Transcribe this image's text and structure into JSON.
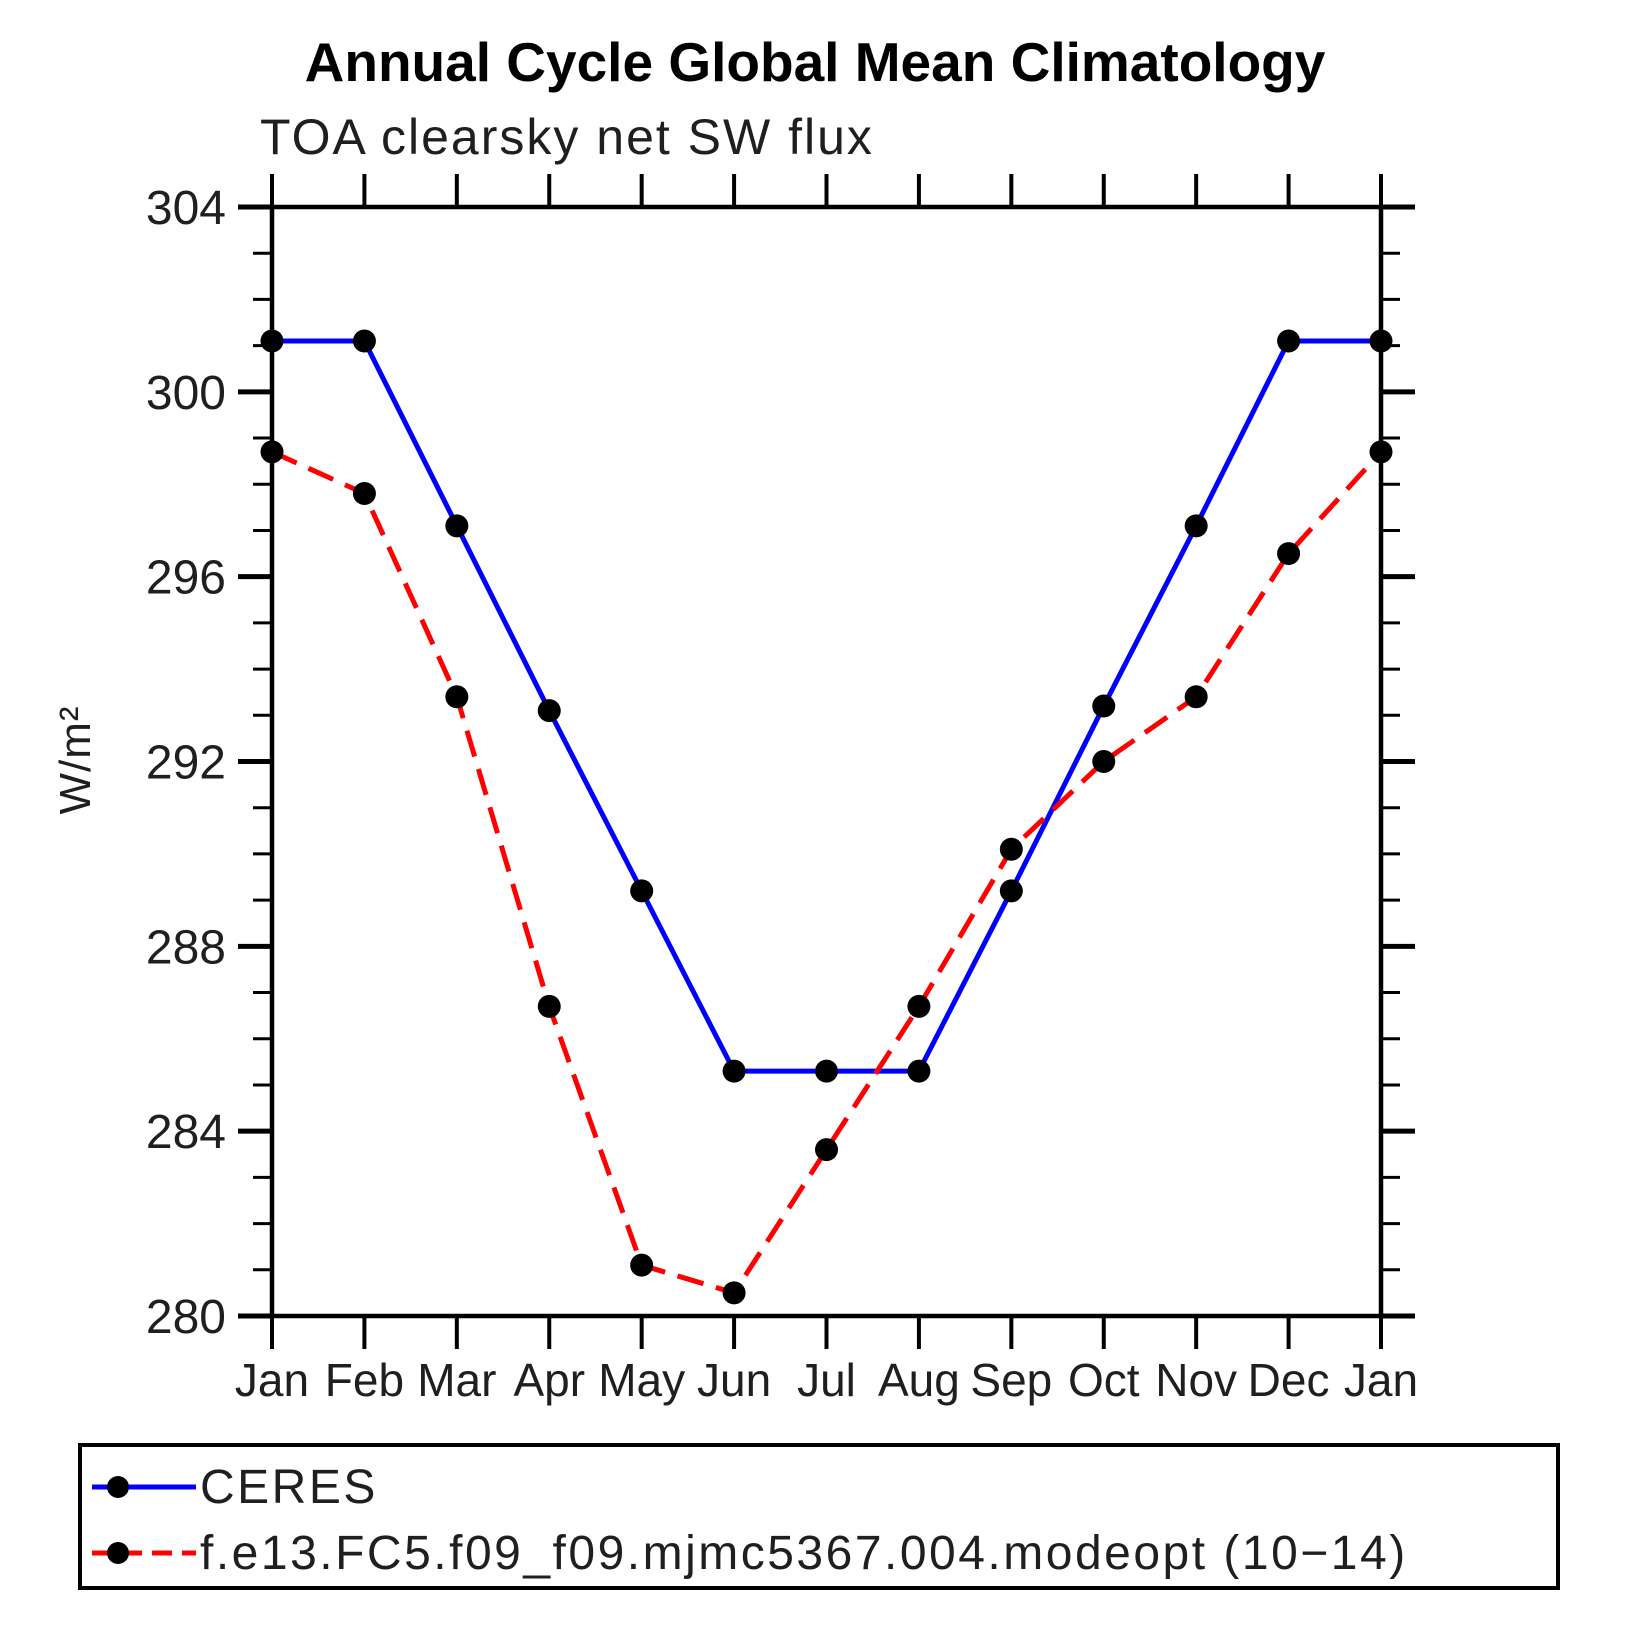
{
  "title": "Annual Cycle Global Mean Climatology",
  "subtitle": "TOA clearsky net SW flux",
  "ylabel": "W/m²",
  "legend": {
    "entries": [
      {
        "label": "CERES",
        "color": "#0000ff",
        "style": "solid",
        "marker_color": "#000000"
      },
      {
        "label": "f.e13.FC5.f09_f09.mjmc5367.004.modeopt (10−14)",
        "color": "#ff0000",
        "style": "dashed",
        "marker_color": "#000000"
      }
    ]
  },
  "chart_data": {
    "type": "line",
    "title": "Annual Cycle Global Mean Climatology",
    "subtitle": "TOA clearsky net SW flux",
    "xlabel": "",
    "ylabel": "W/m²",
    "categories": [
      "Jan",
      "Feb",
      "Mar",
      "Apr",
      "May",
      "Jun",
      "Jul",
      "Aug",
      "Sep",
      "Oct",
      "Nov",
      "Dec",
      "Jan"
    ],
    "series": [
      {
        "name": "CERES",
        "color": "#0000ff",
        "line_style": "solid",
        "marker": "filled-circle",
        "marker_color": "#000000",
        "values": [
          301.1,
          301.1,
          297.1,
          293.1,
          289.2,
          285.3,
          285.3,
          285.3,
          289.2,
          293.2,
          297.1,
          301.1,
          301.1
        ]
      },
      {
        "name": "f.e13.FC5.f09_f09.mjmc5367.004.modeopt (10−14)",
        "color": "#ff0000",
        "line_style": "dashed",
        "marker": "filled-circle",
        "marker_color": "#000000",
        "values": [
          298.7,
          297.8,
          293.4,
          286.7,
          281.1,
          280.5,
          283.6,
          286.7,
          290.1,
          292.0,
          293.4,
          296.5,
          298.7
        ]
      }
    ],
    "ylim": [
      280,
      304
    ],
    "y_major_step": 4,
    "y_minor_step": 1,
    "grid": false,
    "frame": "box-with-outward-ticks",
    "legend_position": "bottom"
  }
}
